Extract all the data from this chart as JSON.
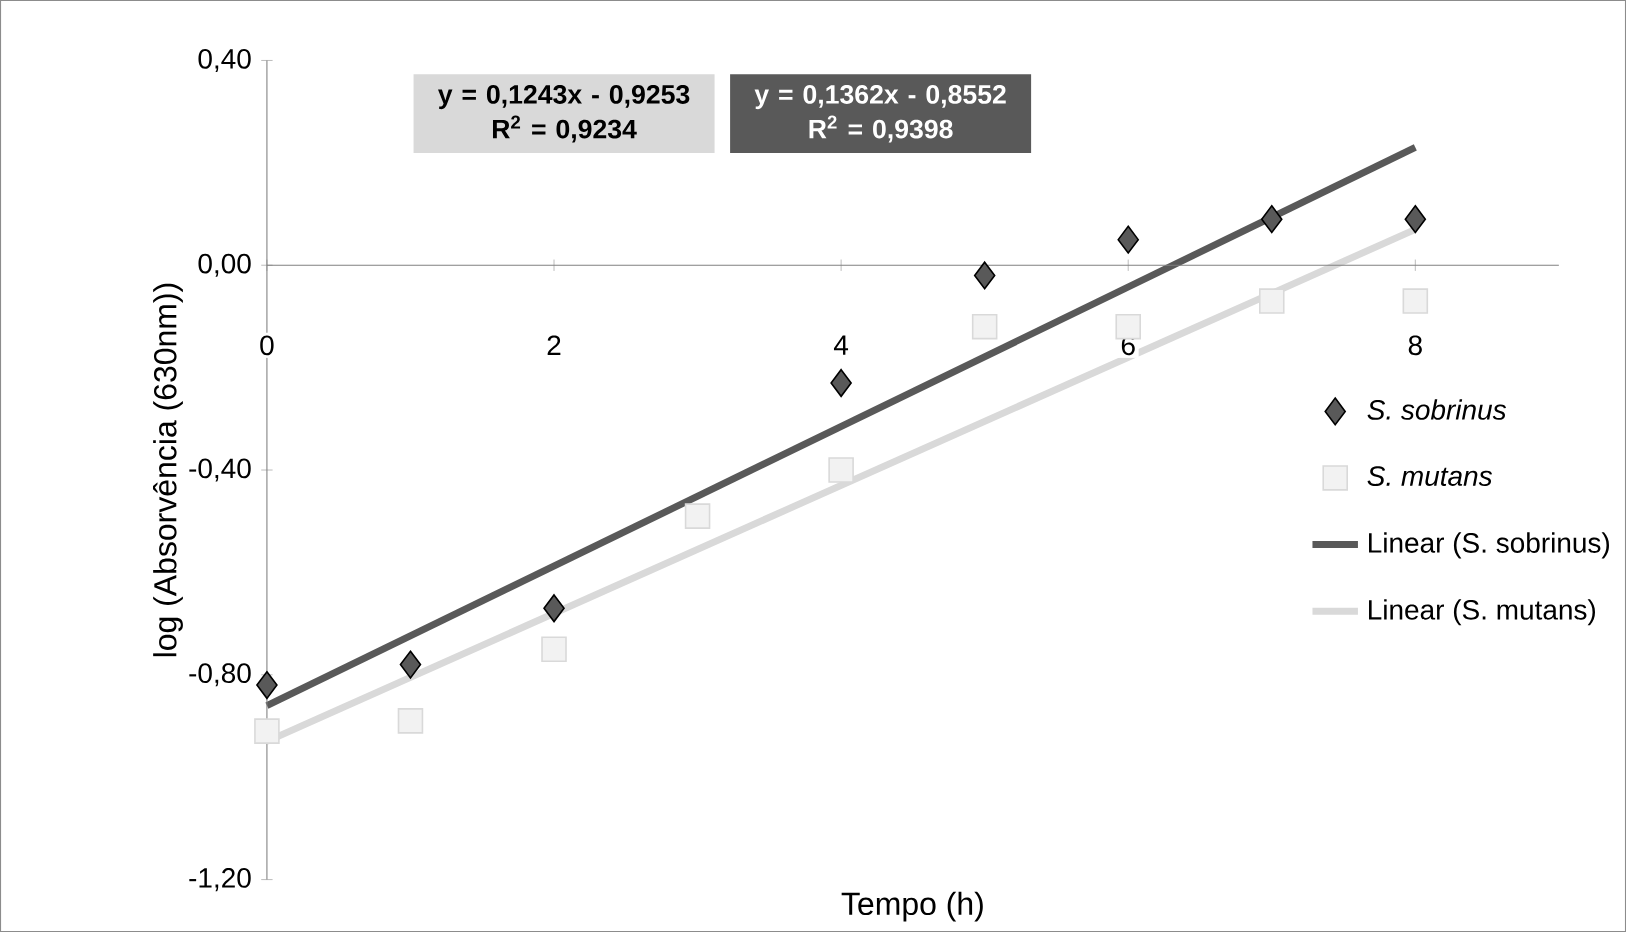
{
  "chart_data": {
    "type": "scatter",
    "xlabel": "Tempo (h)",
    "ylabel": "log (Absorvência (630nm))",
    "xlim": [
      0,
      9
    ],
    "ylim": [
      -1.2,
      0.4
    ],
    "xticks": [
      0,
      2,
      4,
      6,
      8
    ],
    "yticks": [
      {
        "value": -1.2,
        "label": "-1,20"
      },
      {
        "value": -0.8,
        "label": "-0,80"
      },
      {
        "value": -0.4,
        "label": "-0,40"
      },
      {
        "value": 0,
        "label": "0,00"
      },
      {
        "value": 0.4,
        "label": "0,40"
      }
    ],
    "legend": "right",
    "grid": false,
    "annotations": [
      "y = 0,1243x - 0,9253",
      "R$^{2}$ = 0,9234",
      "y = 0,1362x - 0,8552",
      "R$^{2}$ = 0,9398"
    ],
    "series": [
      {
        "name": "S. sobrinus",
        "marker": "diamond",
        "color": "#595959",
        "x": [
          0,
          1,
          2,
          4,
          5,
          6,
          7,
          8
        ],
        "values": [
          -0.82,
          -0.78,
          -0.67,
          -0.23,
          -0.02,
          0.05,
          0.09,
          0.09
        ]
      },
      {
        "name": "S. mutans",
        "marker": "square",
        "color": "#f2f2f2",
        "x": [
          0,
          1,
          2,
          3,
          4,
          5,
          6,
          7,
          8
        ],
        "values": [
          -0.91,
          -0.89,
          -0.75,
          -0.49,
          -0.4,
          -0.12,
          -0.12,
          -0.07,
          -0.07
        ]
      },
      {
        "name": "Linear (S. sobrinus)",
        "type": "line",
        "marker": "none",
        "color": "#595959",
        "x": [
          0,
          8
        ],
        "values": [
          -0.86,
          0.23
        ]
      },
      {
        "name": "Linear (S. mutans)",
        "type": "line",
        "marker": "none",
        "color": "#d9d9d9",
        "x": [
          0,
          8
        ],
        "values": [
          -0.93,
          0.07
        ]
      }
    ]
  }
}
